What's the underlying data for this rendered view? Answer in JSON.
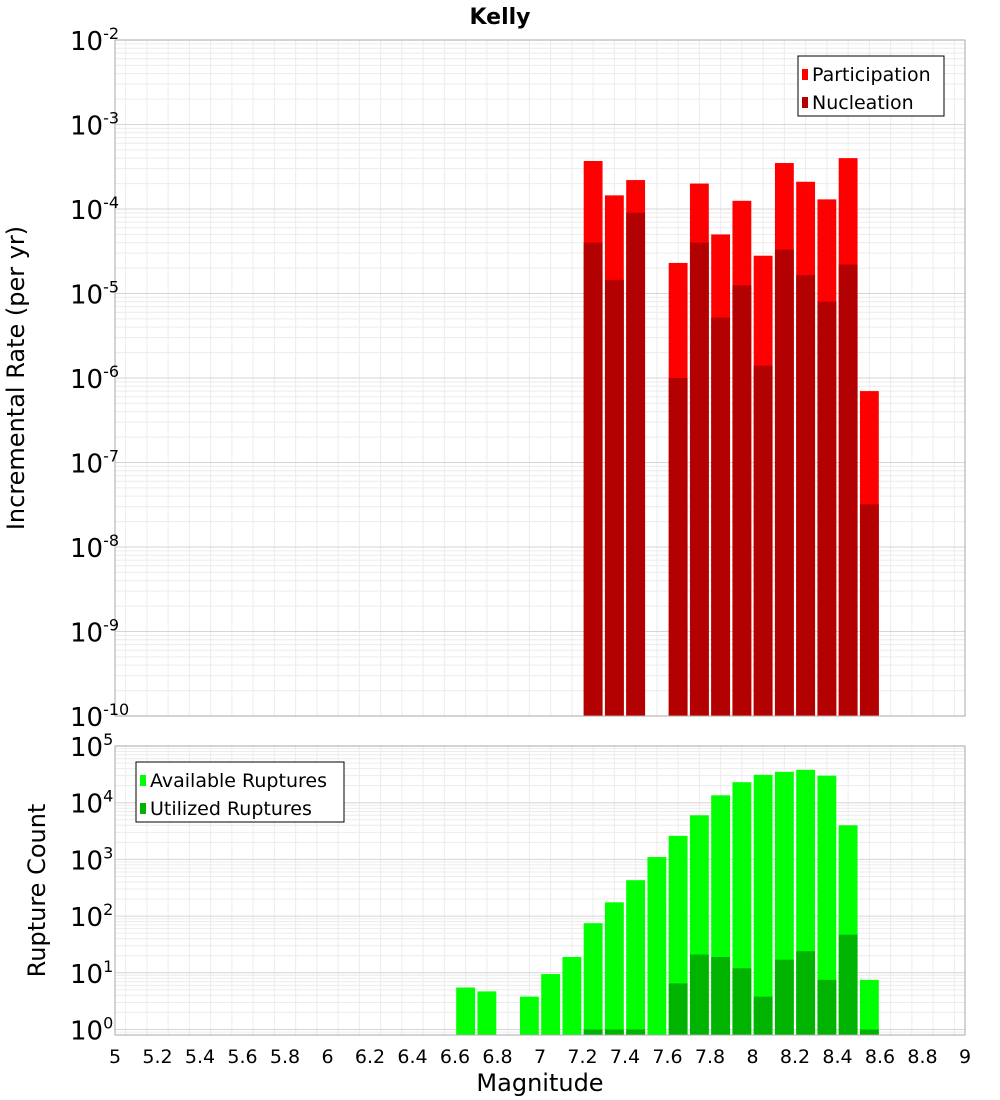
{
  "chart_data": {
    "title": "Kelly",
    "xlabel": "Magnitude",
    "x_ticks": [
      "5",
      "5.2",
      "5.4",
      "5.6",
      "5.8",
      "6",
      "6.2",
      "6.4",
      "6.6",
      "6.8",
      "7",
      "7.2",
      "7.4",
      "7.6",
      "7.8",
      "8",
      "8.2",
      "8.4",
      "8.6",
      "8.8",
      "9"
    ],
    "xlim": [
      5,
      9
    ],
    "panels": [
      {
        "type": "bar",
        "ylabel": "Incremental Rate (per yr)",
        "yscale": "log",
        "ylim": [
          1e-10,
          0.01
        ],
        "y_ticks": [
          {
            "base": "10",
            "exp": "-2"
          },
          {
            "base": "10",
            "exp": "-3"
          },
          {
            "base": "10",
            "exp": "-4"
          },
          {
            "base": "10",
            "exp": "-5"
          },
          {
            "base": "10",
            "exp": "-6"
          },
          {
            "base": "10",
            "exp": "-7"
          },
          {
            "base": "10",
            "exp": "-8"
          },
          {
            "base": "10",
            "exp": "-9"
          },
          {
            "base": "10",
            "exp": "-10"
          }
        ],
        "x": [
          7.25,
          7.35,
          7.45,
          7.55,
          7.65,
          7.75,
          7.85,
          7.95,
          8.05,
          8.15,
          8.25,
          8.35,
          8.45,
          8.55
        ],
        "series": [
          {
            "name": "Participation",
            "color": "#ff0000",
            "values": [
              0.00037,
              0.000145,
              0.00022,
              null,
              2.3e-05,
              0.0002,
              5e-05,
              0.000125,
              2.8e-05,
              0.00035,
              0.00021,
              0.00013,
              0.0004,
              7e-07
            ]
          },
          {
            "name": "Nucleation",
            "color": "#b30000",
            "values": [
              4e-05,
              1.45e-05,
              9e-05,
              null,
              1e-06,
              4e-05,
              5.2e-06,
              1.25e-05,
              1.4e-06,
              3.3e-05,
              1.65e-05,
              8e-06,
              2.2e-05,
              3.2e-08
            ]
          }
        ],
        "legend": "top-right"
      },
      {
        "type": "bar",
        "ylabel": "Rupture Count",
        "yscale": "log",
        "ylim": [
          0.8,
          100000.0
        ],
        "y_ticks": [
          {
            "base": "10",
            "exp": "5"
          },
          {
            "base": "10",
            "exp": "4"
          },
          {
            "base": "10",
            "exp": "3"
          },
          {
            "base": "10",
            "exp": "2"
          },
          {
            "base": "10",
            "exp": "1"
          },
          {
            "base": "10",
            "exp": "0"
          }
        ],
        "x": [
          6.65,
          6.75,
          6.85,
          6.95,
          7.05,
          7.15,
          7.25,
          7.35,
          7.45,
          7.55,
          7.65,
          7.75,
          7.85,
          7.95,
          8.05,
          8.15,
          8.25,
          8.35,
          8.45,
          8.55
        ],
        "series": [
          {
            "name": "Available Ruptures",
            "color": "#00ff00",
            "values": [
              5.5,
              4.7,
              null,
              3.8,
              9.5,
              19,
              75,
              175,
              430,
              1100,
              2600,
              6000,
              13500,
              23000,
              31000,
              35000,
              38000,
              30000,
              4000,
              7.5
            ]
          },
          {
            "name": "Utilized Ruptures",
            "color": "#00b300",
            "values": [
              null,
              null,
              null,
              null,
              null,
              null,
              1,
              1,
              1,
              null,
              6.5,
              21,
              19,
              12,
              3.8,
              17,
              24,
              7.5,
              47,
              1
            ]
          }
        ],
        "legend": "top-left"
      }
    ]
  }
}
